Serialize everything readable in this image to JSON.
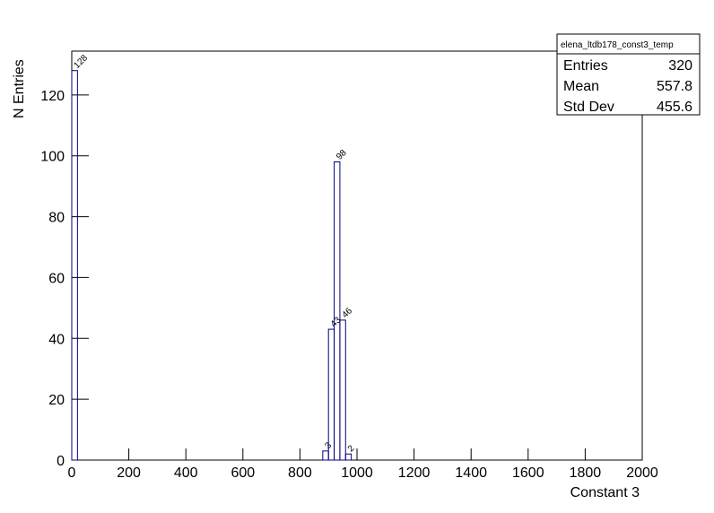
{
  "chart_data": {
    "type": "histogram",
    "x_label": "Constant 3",
    "y_label": "N Entries",
    "bins": [
      0,
      20,
      40,
      60,
      80,
      100,
      120,
      140,
      160,
      180,
      200,
      220,
      240,
      260,
      280,
      300,
      320,
      340,
      360,
      380,
      400,
      420,
      440,
      460,
      480,
      500,
      520,
      540,
      560,
      580,
      600,
      620,
      640,
      660,
      680,
      700,
      720,
      740,
      760,
      780,
      800,
      820,
      840,
      860,
      880,
      900,
      920,
      940,
      960,
      980,
      1000,
      1020,
      1040,
      1060,
      1080,
      1100,
      1120,
      1140,
      1160,
      1180,
      1200,
      1220,
      1240,
      1260,
      1280,
      1300,
      1320,
      1340,
      1360,
      1380,
      1400,
      1420,
      1440,
      1460,
      1480,
      1500,
      1520,
      1540,
      1560,
      1580,
      1600,
      1620,
      1640,
      1660,
      1680,
      1700,
      1720,
      1740,
      1760,
      1780,
      1800,
      1820,
      1840,
      1860,
      1880,
      1900,
      1920,
      1940,
      1960,
      1980,
      2000
    ],
    "values": [
      128,
      0,
      0,
      0,
      0,
      0,
      0,
      0,
      0,
      0,
      0,
      0,
      0,
      0,
      0,
      0,
      0,
      0,
      0,
      0,
      0,
      0,
      0,
      0,
      0,
      0,
      0,
      0,
      0,
      0,
      0,
      0,
      0,
      0,
      0,
      0,
      0,
      0,
      0,
      0,
      0,
      0,
      0,
      0,
      3,
      43,
      98,
      46,
      2,
      0,
      0,
      0,
      0,
      0,
      0,
      0,
      0,
      0,
      0,
      0,
      0,
      0,
      0,
      0,
      0,
      0,
      0,
      0,
      0,
      0,
      0,
      0,
      0,
      0,
      0,
      0,
      0,
      0,
      0,
      0,
      0,
      0,
      0,
      0,
      0,
      0,
      0,
      0,
      0,
      0,
      0,
      0,
      0,
      0,
      0,
      0,
      0,
      0,
      0,
      0
    ],
    "color": "#000080",
    "xlim": [
      0,
      2000
    ],
    "xticks": [
      0,
      200,
      400,
      600,
      800,
      1000,
      1200,
      1400,
      1600,
      1800,
      2000
    ],
    "ylim": [
      0,
      134.4
    ],
    "yticks": [
      0,
      20,
      40,
      60,
      80,
      100,
      120
    ],
    "stats": {
      "title": "elena_ltdb178_const3_temp",
      "rows": [
        [
          "Entries",
          320
        ],
        [
          "Mean",
          557.8
        ],
        [
          "Std Dev",
          455.6
        ]
      ]
    }
  }
}
